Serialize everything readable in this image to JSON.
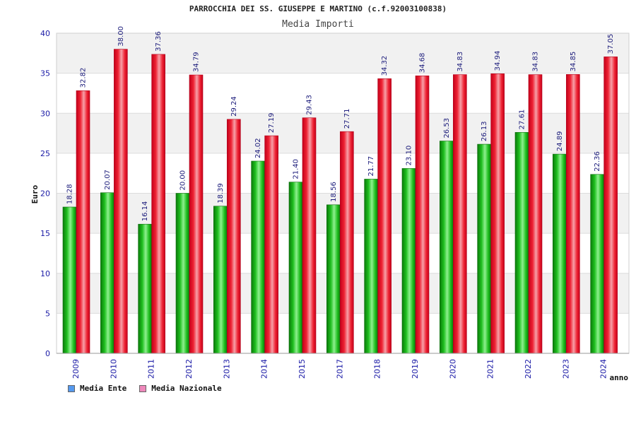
{
  "colors": {
    "ente": "#22bb22",
    "nazionale": "#ee2233",
    "legend_ente": "#5599ee",
    "legend_nazionale": "#ee88bb",
    "band": "#f1f1f1",
    "grid": "#dcdcdc",
    "tick": "#1a1aa6"
  },
  "chart_data": {
    "type": "bar",
    "title": "PARROCCHIA DEI SS. GIUSEPPE E MARTINO (c.f.92003100838)",
    "subtitle": "Media Importi",
    "xlabel": "anno",
    "ylabel": "Euro",
    "ylim": [
      0,
      40
    ],
    "yticks": [
      "0",
      "5",
      "10",
      "15",
      "20",
      "25",
      "30",
      "35",
      "40"
    ],
    "categories": [
      "2009",
      "2010",
      "2011",
      "2012",
      "2013",
      "2014",
      "2015",
      "2017",
      "2018",
      "2019",
      "2020",
      "2021",
      "2022",
      "2023",
      "2024"
    ],
    "series": [
      {
        "name": "Media Ente",
        "values": [
          18.28,
          20.07,
          16.14,
          20.0,
          18.39,
          24.02,
          21.4,
          18.56,
          21.77,
          23.1,
          26.53,
          26.13,
          27.61,
          24.89,
          22.36
        ],
        "labels": [
          "18.28",
          "20.07",
          "16.14",
          "20.00",
          "18.39",
          "24.02",
          "21.40",
          "18.56",
          "21.77",
          "23.10",
          "26.53",
          "26.13",
          "27.61",
          "24.89",
          "22.36"
        ]
      },
      {
        "name": "Media Nazionale",
        "values": [
          32.82,
          38.0,
          37.36,
          34.79,
          29.24,
          27.19,
          29.43,
          27.71,
          34.32,
          34.68,
          34.83,
          34.94,
          34.83,
          34.85,
          37.05
        ],
        "labels": [
          "32.82",
          "38.00",
          "37.36",
          "34.79",
          "29.24",
          "27.19",
          "29.43",
          "27.71",
          "34.32",
          "34.68",
          "34.83",
          "34.94",
          "34.83",
          "34.85",
          "37.05"
        ]
      }
    ],
    "grid": true,
    "legend_position": "bottom-left"
  }
}
